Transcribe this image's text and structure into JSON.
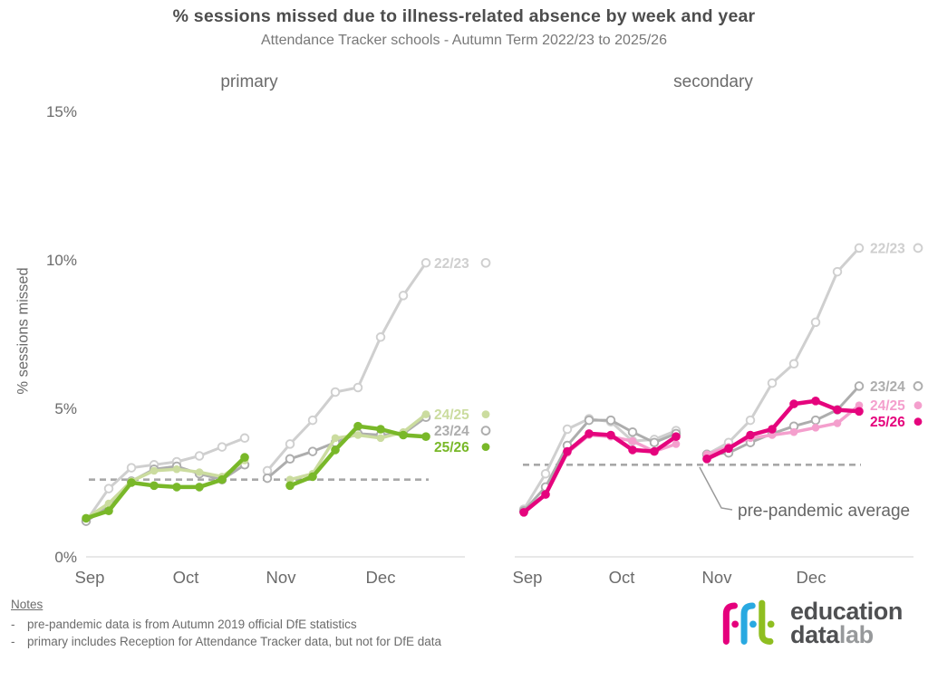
{
  "header": {
    "title": "% sessions missed due to illness-related absence by week and year",
    "subtitle": "Attendance Tracker schools - Autumn Term 2022/23 to 2025/26"
  },
  "y_axis": {
    "label": "% sessions missed",
    "ticks": [
      {
        "label": "0%",
        "value": 0
      },
      {
        "label": "5%",
        "value": 5
      },
      {
        "label": "10%",
        "value": 10
      },
      {
        "label": "15%",
        "value": 15
      }
    ]
  },
  "annotation": {
    "label": "pre-pandemic average"
  },
  "notes": {
    "heading": "Notes",
    "bullet": "-",
    "items": [
      "pre-pandemic data is from Autumn 2019 official DfE statistics",
      "primary includes Reception for Attendance Tracker data, but not for DfE data"
    ]
  },
  "logo": {
    "brand": "fft",
    "line1": "education",
    "line2_bold": "data",
    "line2_light": "lab",
    "colors": {
      "f1": "#e5007d",
      "f2": "#29a9e1",
      "t": "#8fbe21",
      "text": "#4f5052",
      "lab": "#97999b"
    }
  },
  "colors": {
    "title_text": "#4d4d4d",
    "axis_text": "#6b6b6b",
    "baseline": "#d9d9d9",
    "dashed_average_line": "#a8a8a8",
    "year_22_23": "#cfcfcf",
    "year_23_24": "#adadad",
    "primary_24_25": "#cbdc9f",
    "primary_25_26": "#79b829",
    "secondary_24_25": "#f49fcd",
    "secondary_25_26": "#e5047d"
  },
  "chart_data": [
    {
      "type": "line",
      "title": "primary",
      "x_unit": "week of autumn term (gap = half-term break)",
      "x_weeks": [
        1,
        2,
        3,
        4,
        5,
        6,
        7,
        8,
        9,
        10,
        11,
        12,
        13,
        14,
        15,
        16
      ],
      "x_months": [
        "Sep",
        "Oct",
        "Nov",
        "Dec"
      ],
      "ylabel": "% sessions missed",
      "ylim": [
        0,
        15
      ],
      "grid": false,
      "pre_pandemic_average_pct": 2.6,
      "series": [
        {
          "name": "22/23",
          "color": "#cfcfcf",
          "marker": "open",
          "values_pct": [
            1.2,
            2.3,
            3.0,
            3.1,
            3.2,
            3.4,
            3.7,
            4.0,
            2.9,
            3.8,
            4.6,
            5.55,
            5.7,
            7.4,
            8.8,
            9.9
          ]
        },
        {
          "name": "23/24",
          "color": "#adadad",
          "marker": "open",
          "values_pct": [
            1.2,
            1.7,
            2.55,
            2.95,
            3.05,
            2.8,
            2.6,
            3.1,
            2.65,
            3.3,
            3.55,
            3.85,
            4.15,
            4.1,
            4.15,
            4.7
          ]
        },
        {
          "name": "24/25",
          "color": "#cbdc9f",
          "marker": "filled",
          "values_pct": [
            1.3,
            1.8,
            2.55,
            2.9,
            2.95,
            2.85,
            2.7,
            3.25,
            null,
            2.6,
            2.8,
            4.0,
            4.1,
            4.0,
            4.2,
            4.8
          ]
        },
        {
          "name": "25/26",
          "color": "#79b829",
          "marker": "filled",
          "values_pct": [
            1.3,
            1.55,
            2.5,
            2.4,
            2.35,
            2.35,
            2.6,
            3.35,
            null,
            2.4,
            2.7,
            3.6,
            4.4,
            4.3,
            4.1,
            4.05
          ]
        }
      ]
    },
    {
      "type": "line",
      "title": "secondary",
      "x_unit": "week of autumn term (gap = half-term break)",
      "x_weeks": [
        1,
        2,
        3,
        4,
        5,
        6,
        7,
        8,
        9,
        10,
        11,
        12,
        13,
        14,
        15,
        16
      ],
      "x_months": [
        "Sep",
        "Oct",
        "Nov",
        "Dec"
      ],
      "ylabel": "% sessions missed",
      "ylim": [
        0,
        15
      ],
      "grid": false,
      "pre_pandemic_average_pct": 3.1,
      "series": [
        {
          "name": "22/23",
          "color": "#cfcfcf",
          "marker": "open",
          "values_pct": [
            1.6,
            2.8,
            4.3,
            4.65,
            4.55,
            3.9,
            3.95,
            4.25,
            3.45,
            3.85,
            4.6,
            5.85,
            6.5,
            7.9,
            9.6,
            10.4
          ]
        },
        {
          "name": "23/24",
          "color": "#adadad",
          "marker": "open",
          "values_pct": [
            1.55,
            2.35,
            3.75,
            4.6,
            4.6,
            4.2,
            3.85,
            4.15,
            3.45,
            3.5,
            3.85,
            4.15,
            4.4,
            4.6,
            4.95,
            5.75
          ]
        },
        {
          "name": "24/25",
          "color": "#f49fcd",
          "marker": "filled",
          "values_pct": [
            1.5,
            2.1,
            3.5,
            4.1,
            4.05,
            3.9,
            3.55,
            3.8,
            3.45,
            3.7,
            4.0,
            4.1,
            4.2,
            4.35,
            4.5,
            5.1
          ]
        },
        {
          "name": "25/26",
          "color": "#e5047d",
          "marker": "filled",
          "values_pct": [
            1.5,
            2.1,
            3.55,
            4.15,
            4.1,
            3.6,
            3.55,
            4.05,
            3.3,
            3.65,
            4.1,
            4.3,
            5.15,
            5.25,
            4.95,
            4.9
          ]
        }
      ]
    }
  ]
}
